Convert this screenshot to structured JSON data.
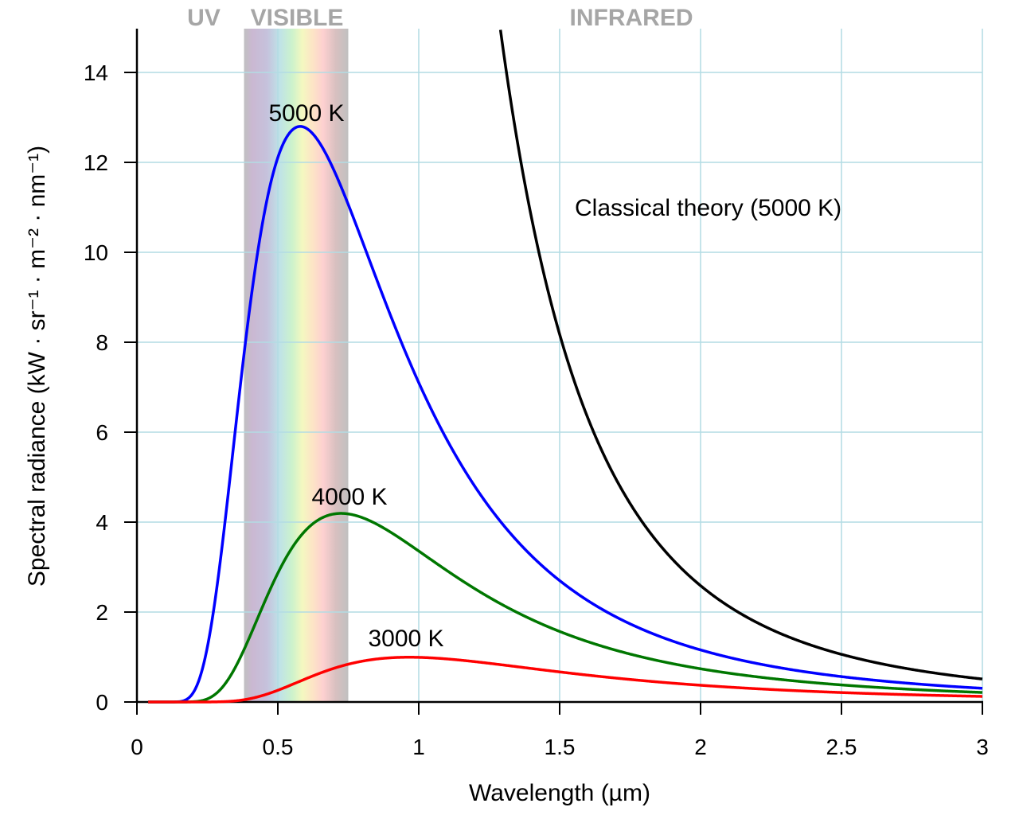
{
  "chart_data": {
    "type": "line",
    "xlabel": "Wavelength (µm)",
    "ylabel": "Spectral radiance (kW · sr⁻¹ · m⁻² · nm⁻¹)",
    "xlim": [
      0,
      3
    ],
    "ylim": [
      0,
      15
    ],
    "x_ticks": [
      "0",
      "0.5",
      "1",
      "1.5",
      "2",
      "2.5",
      "3"
    ],
    "y_ticks": [
      "0",
      "2",
      "4",
      "6",
      "8",
      "10",
      "12",
      "14"
    ],
    "grid": true,
    "regions": [
      {
        "label": "UV",
        "x_range": [
          0,
          0.38
        ]
      },
      {
        "label": "VISIBLE",
        "x_range": [
          0.38,
          0.75
        ]
      },
      {
        "label": "INFRARED",
        "x_range": [
          0.75,
          3
        ]
      }
    ],
    "series": [
      {
        "name": "5000 K",
        "temperature_K": 5000,
        "color": "#0000ff",
        "model": "planck",
        "peak": [
          0.58,
          12.7
        ]
      },
      {
        "name": "4000 K",
        "temperature_K": 4000,
        "color": "#007700",
        "model": "planck",
        "peak": [
          0.72,
          4.2
        ]
      },
      {
        "name": "3000 K",
        "temperature_K": 3000,
        "color": "#ff0000",
        "model": "planck",
        "peak": [
          0.97,
          1.0
        ]
      },
      {
        "name": "Classical theory (5000 K)",
        "temperature_K": 5000,
        "color": "#000000",
        "model": "rayleigh-jeans",
        "endpoint": [
          3,
          0.5
        ]
      }
    ]
  }
}
